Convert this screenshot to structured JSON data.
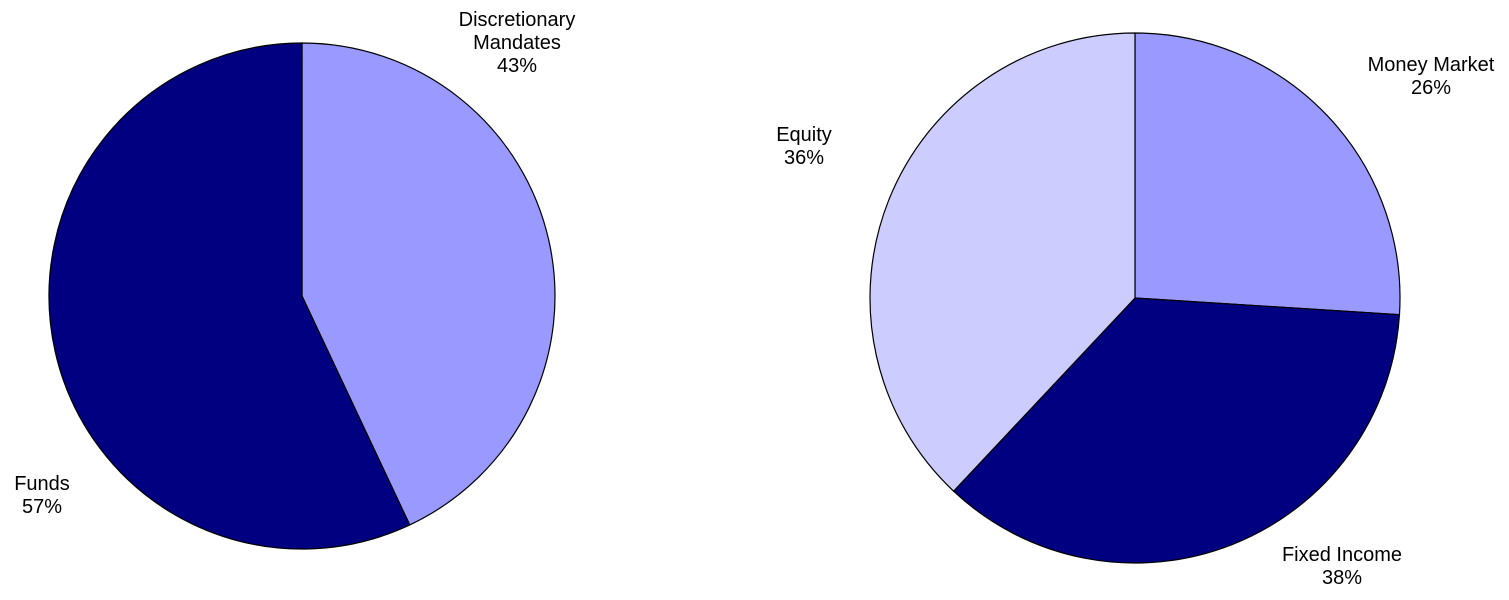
{
  "chart_data": [
    {
      "type": "pie",
      "slices": [
        {
          "label_lines": [
            "Discretionary",
            "Mandates"
          ],
          "value_label": "43%",
          "value": 43,
          "color": "#9999ff"
        },
        {
          "label_lines": [
            "Funds"
          ],
          "value_label": "57%",
          "value": 57,
          "color": "#000080"
        }
      ]
    },
    {
      "type": "pie",
      "slices": [
        {
          "label_lines": [
            "Money Market"
          ],
          "value_label": "26%",
          "value": 26,
          "color": "#9999ff"
        },
        {
          "label_lines": [
            "Equity"
          ],
          "value_label": "36%",
          "value": 36,
          "color": "#000080"
        },
        {
          "label_lines": [
            "Fixed Income"
          ],
          "value_label": "38%",
          "value": 38,
          "color": "#ccccff"
        }
      ]
    }
  ]
}
